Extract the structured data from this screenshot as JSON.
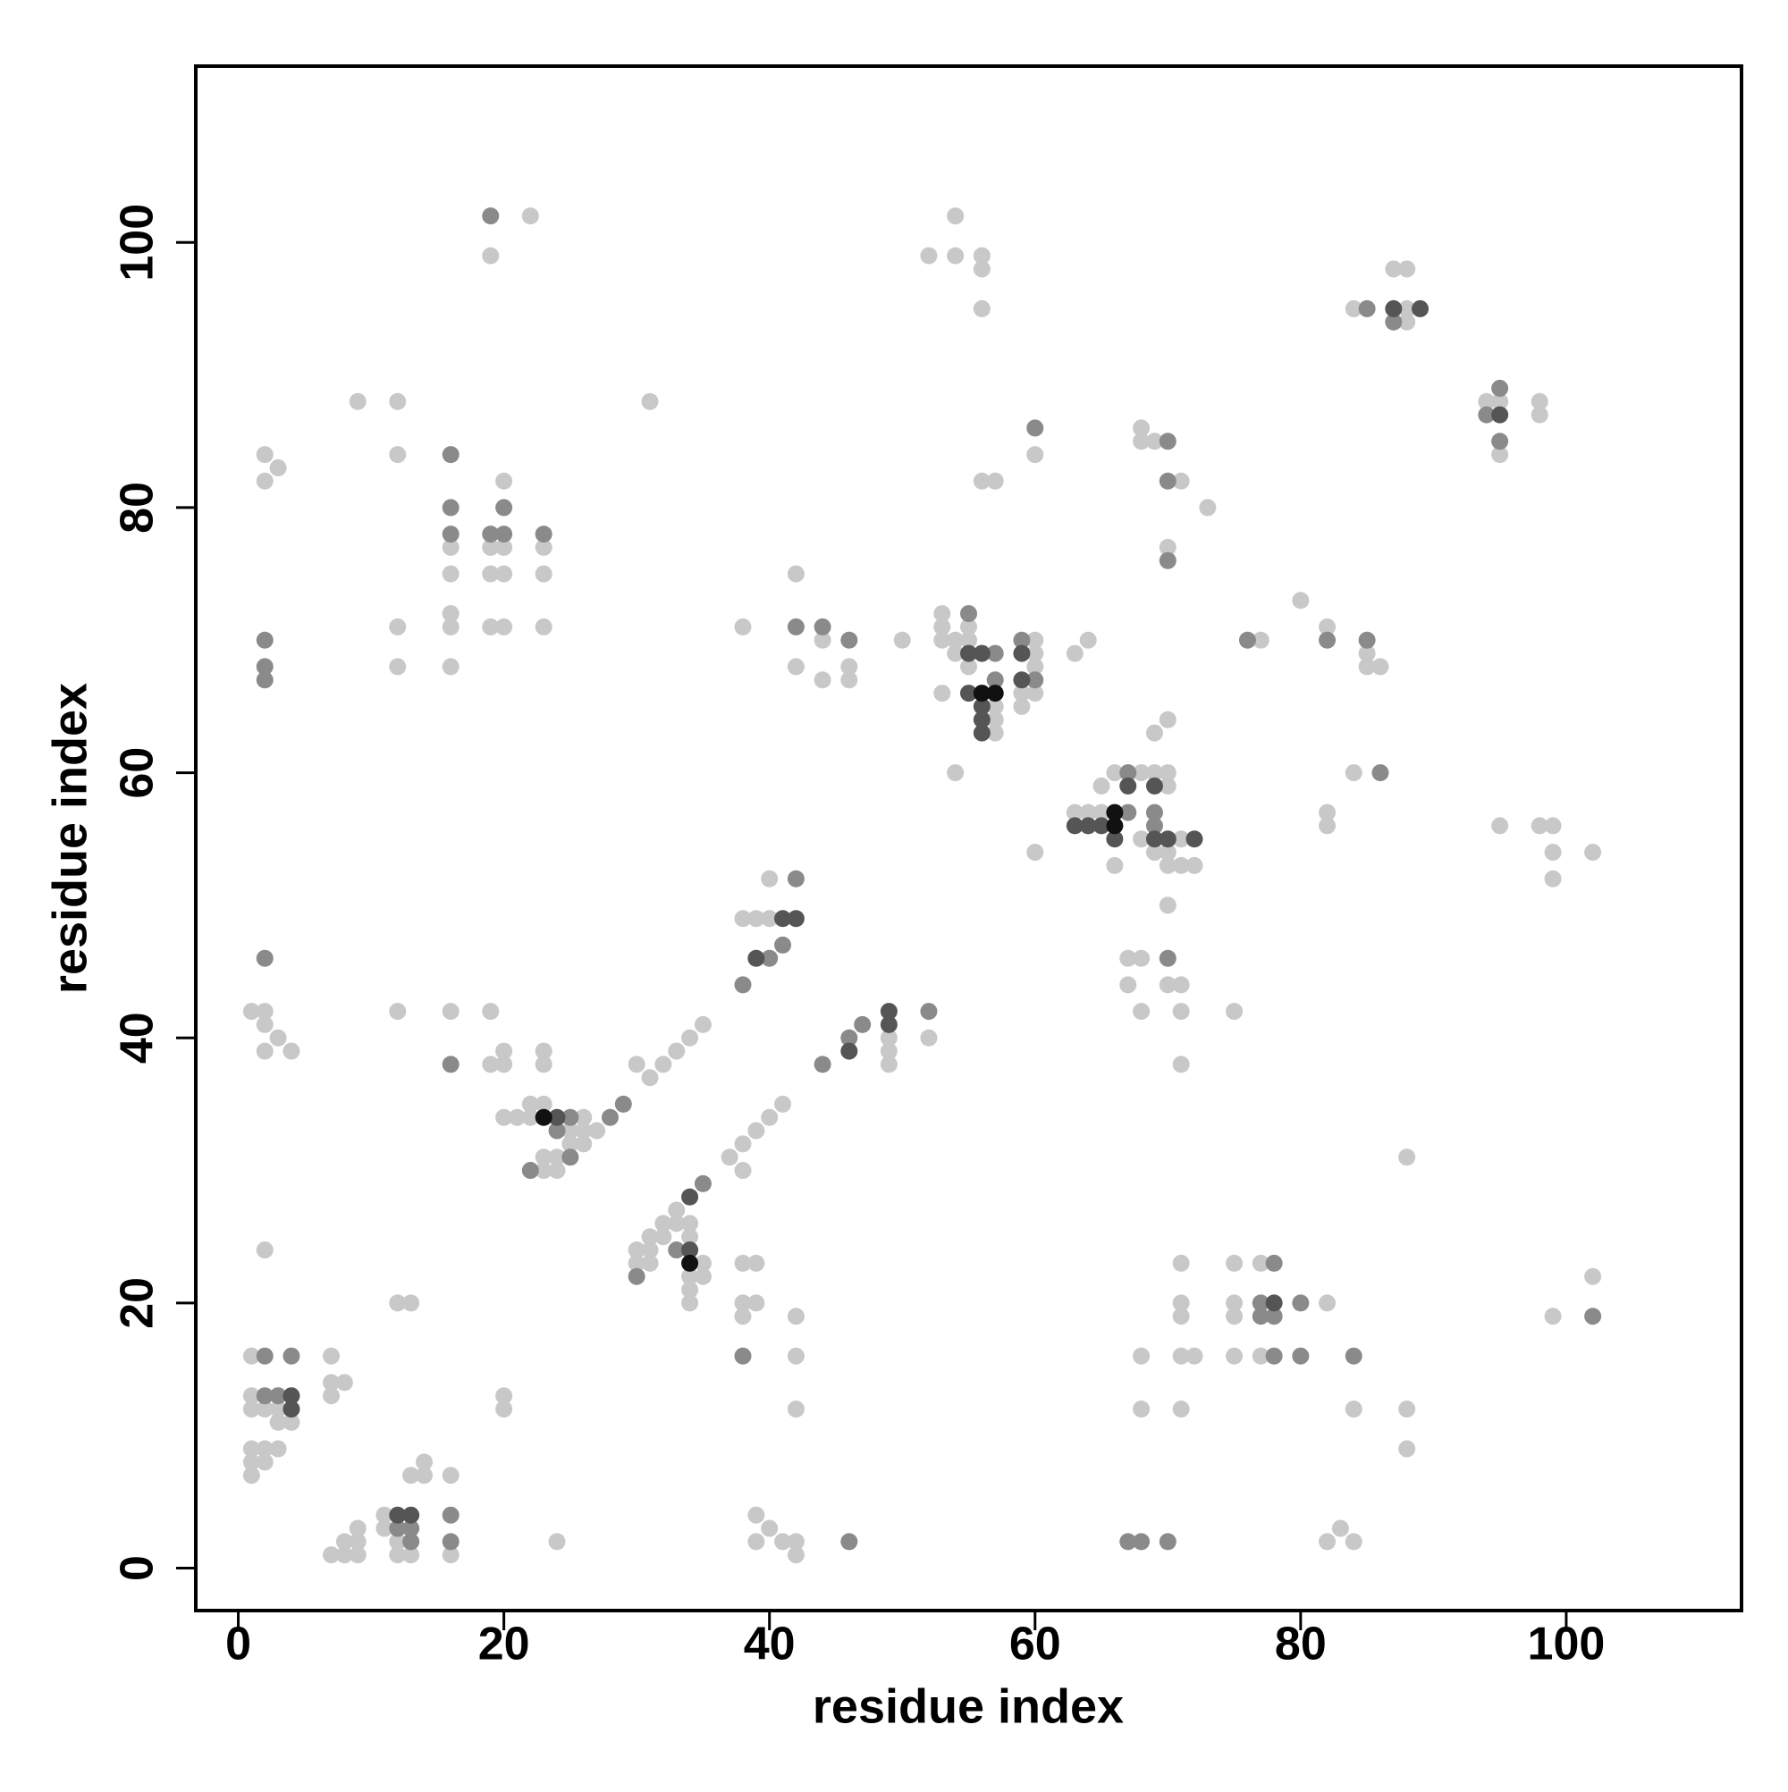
{
  "chart_data": {
    "type": "scatter",
    "x_label": "residue index",
    "y_label": "residue index",
    "xlim": [
      -3.2,
      113.2
    ],
    "ylim": [
      -3.2,
      113.3
    ],
    "xticks": [
      0,
      20,
      40,
      60,
      80,
      100
    ],
    "yticks": [
      0,
      20,
      40,
      60,
      80,
      100
    ],
    "series": [
      {
        "color": "#c8c8c8",
        "x": [
          1,
          1,
          1,
          1,
          1,
          1,
          2,
          2,
          2,
          3,
          3,
          4,
          3,
          2,
          7,
          7,
          7,
          8,
          7,
          8,
          8,
          9,
          9,
          9,
          11,
          11,
          12,
          12,
          13,
          13,
          14,
          14,
          16,
          16,
          12,
          13,
          20,
          20,
          24,
          1,
          2,
          2,
          2,
          3,
          4,
          2,
          2,
          3,
          9,
          12,
          12,
          12,
          12,
          12,
          16,
          16,
          16,
          16,
          16,
          16,
          19,
          22,
          20,
          19,
          20,
          19,
          20,
          19,
          20,
          23,
          23,
          23,
          19,
          19,
          20,
          20,
          23,
          23,
          20,
          21,
          22,
          22,
          23,
          25,
          26,
          26,
          27,
          25,
          26,
          23,
          24,
          23,
          24,
          30,
          31,
          32,
          33,
          34,
          35,
          31,
          30,
          30,
          31,
          31,
          32,
          32,
          33,
          33,
          34,
          34,
          31,
          35,
          35,
          34,
          34,
          34,
          37,
          38,
          39,
          40,
          41,
          38,
          38,
          39,
          38,
          39,
          38,
          42,
          42,
          42,
          39,
          40,
          39,
          41,
          42,
          42,
          38,
          39,
          40,
          40,
          38,
          42,
          42,
          44,
          44,
          46,
          46,
          50,
          49,
          49,
          49,
          52,
          52,
          54,
          54,
          56,
          56,
          56,
          56,
          57,
          53,
          53,
          53,
          54,
          55,
          55,
          54,
          55,
          57,
          57,
          57,
          53,
          54,
          60,
          60,
          60,
          59,
          60,
          59,
          60,
          60,
          63,
          64,
          63,
          64,
          65,
          66,
          65,
          66,
          68,
          69,
          70,
          70,
          68,
          69,
          70,
          70,
          71,
          72,
          71,
          69,
          70,
          68,
          68,
          69,
          71,
          73,
          70,
          70,
          67,
          68,
          67,
          70,
          71,
          68,
          71,
          71,
          75,
          77,
          80,
          82,
          85,
          85,
          86,
          84,
          82,
          82,
          84,
          88,
          88,
          87,
          88,
          94,
          95,
          95,
          98,
          98,
          95,
          98,
          99,
          99,
          99,
          102,
          88,
          71,
          71,
          71,
          71,
          72,
          68,
          68,
          71,
          75,
          75,
          75,
          75,
          77,
          77,
          82,
          84,
          88,
          88,
          82,
          83,
          84,
          99,
          102
        ],
        "values": [
          16,
          13,
          12,
          9,
          8,
          7,
          12,
          9,
          8,
          11,
          9,
          11,
          12,
          24,
          16,
          14,
          13,
          14,
          1,
          1,
          2,
          1,
          2,
          3,
          4,
          3,
          2,
          1,
          1,
          7,
          7,
          8,
          7,
          1,
          20,
          20,
          13,
          12,
          2,
          42,
          42,
          41,
          39,
          40,
          39,
          84,
          82,
          83,
          88,
          88,
          84,
          71,
          68,
          42,
          77,
          75,
          72,
          71,
          68,
          42,
          99,
          102,
          82,
          77,
          77,
          75,
          75,
          71,
          71,
          77,
          75,
          71,
          42,
          38,
          38,
          39,
          39,
          38,
          34,
          34,
          34,
          35,
          35,
          33,
          34,
          33,
          33,
          32,
          32,
          31,
          31,
          30,
          30,
          38,
          37,
          38,
          39,
          40,
          41,
          88,
          24,
          23,
          24,
          25,
          25,
          26,
          26,
          27,
          26,
          25,
          23,
          23,
          22,
          22,
          21,
          20,
          31,
          32,
          33,
          34,
          35,
          30,
          23,
          23,
          20,
          20,
          19,
          19,
          16,
          12,
          4,
          3,
          2,
          2,
          2,
          1,
          49,
          49,
          49,
          52,
          71,
          75,
          68,
          70,
          67,
          68,
          67,
          70,
          40,
          39,
          38,
          40,
          99,
          99,
          102,
          99,
          98,
          95,
          82,
          82,
          72,
          71,
          70,
          70,
          71,
          70,
          69,
          68,
          65,
          64,
          63,
          66,
          60,
          70,
          69,
          68,
          66,
          66,
          65,
          84,
          54,
          69,
          70,
          57,
          57,
          57,
          53,
          59,
          60,
          60,
          60,
          60,
          59,
          55,
          54,
          54,
          53,
          53,
          53,
          55,
          63,
          64,
          86,
          85,
          85,
          82,
          80,
          77,
          50,
          46,
          46,
          44,
          44,
          44,
          42,
          42,
          38,
          42,
          70,
          73,
          71,
          69,
          68,
          68,
          60,
          57,
          56,
          95,
          95,
          94,
          98,
          98,
          88,
          88,
          84,
          88,
          87,
          56,
          56,
          56,
          54,
          52,
          54,
          31,
          23,
          20,
          19,
          16,
          16,
          16,
          12,
          12,
          23,
          20,
          19,
          16,
          23,
          16,
          20,
          12,
          12,
          9,
          2,
          3,
          2,
          19,
          22
        ]
      },
      {
        "color": "#8a8a8a",
        "x": [
          2,
          2,
          3,
          4,
          12,
          13,
          13,
          16,
          16,
          2,
          2,
          2,
          2,
          16,
          16,
          16,
          16,
          19,
          19,
          20,
          20,
          23,
          25,
          24,
          25,
          22,
          28,
          29,
          30,
          33,
          35,
          38,
          46,
          38,
          40,
          41,
          42,
          42,
          44,
          46,
          44,
          46,
          47,
          52,
          55,
          57,
          57,
          59,
          60,
          60,
          67,
          67,
          69,
          69,
          70,
          70,
          70,
          70,
          76,
          82,
          85,
          86,
          85,
          87,
          95,
          94,
          95,
          78,
          77,
          77,
          78,
          78,
          80,
          80,
          84,
          67,
          68,
          70,
          102
        ],
        "values": [
          16,
          13,
          13,
          16,
          3,
          3,
          2,
          4,
          2,
          46,
          70,
          68,
          67,
          84,
          80,
          78,
          38,
          102,
          78,
          78,
          80,
          78,
          34,
          33,
          31,
          30,
          34,
          35,
          22,
          24,
          29,
          16,
          2,
          44,
          46,
          47,
          52,
          71,
          71,
          70,
          38,
          40,
          41,
          42,
          72,
          69,
          67,
          70,
          67,
          86,
          60,
          57,
          57,
          56,
          85,
          82,
          76,
          46,
          70,
          70,
          70,
          60,
          95,
          94,
          89,
          87,
          85,
          23,
          20,
          19,
          19,
          16,
          20,
          16,
          16,
          2,
          2,
          2,
          19
        ]
      },
      {
        "color": "#555555",
        "x": [
          4,
          4,
          12,
          13,
          24,
          34,
          34,
          39,
          41,
          42,
          46,
          49,
          49,
          55,
          56,
          55,
          56,
          56,
          56,
          59,
          59,
          63,
          64,
          65,
          66,
          67,
          69,
          69,
          70,
          72,
          87,
          89,
          95,
          78
        ],
        "values": [
          13,
          12,
          4,
          4,
          34,
          24,
          28,
          46,
          49,
          49,
          39,
          42,
          41,
          69,
          69,
          66,
          65,
          64,
          63,
          69,
          67,
          56,
          56,
          56,
          55,
          59,
          59,
          55,
          55,
          55,
          95,
          95,
          87,
          20
        ]
      },
      {
        "color": "#111111",
        "x": [
          23,
          34,
          56,
          57,
          66,
          66
        ],
        "values": [
          34,
          23,
          66,
          66,
          57,
          56
        ]
      }
    ]
  }
}
